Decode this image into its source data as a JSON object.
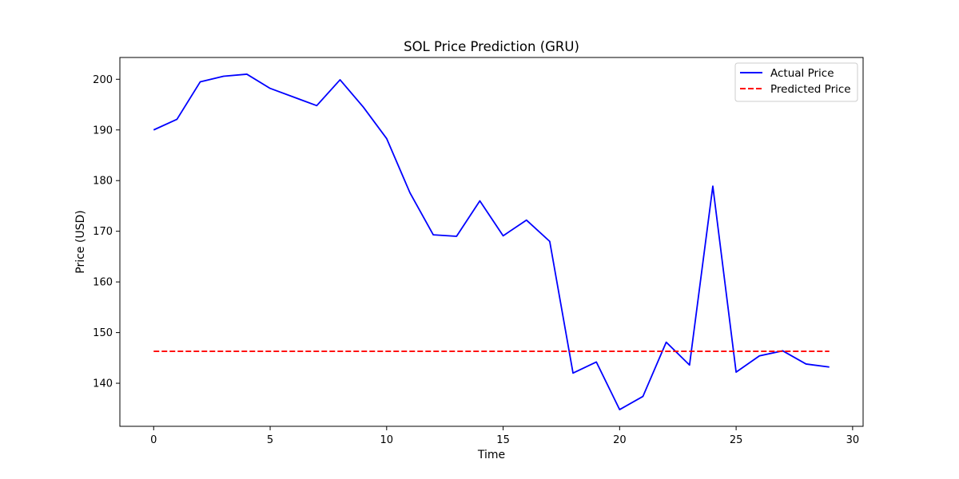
{
  "chart_data": {
    "type": "line",
    "title": "SOL Price Prediction (GRU)",
    "xlabel": "Time",
    "ylabel": "Price (USD)",
    "xlim": [
      -1.45,
      30.45
    ],
    "ylim": [
      131.5,
      204.3
    ],
    "xticks": [
      0,
      5,
      10,
      15,
      20,
      25,
      30
    ],
    "yticks": [
      140,
      150,
      160,
      170,
      180,
      190,
      200
    ],
    "grid": false,
    "legend_position": "top-right",
    "series": [
      {
        "name": "Actual Price",
        "color": "#0000ff",
        "style": "solid",
        "x": [
          0,
          1,
          2,
          3,
          4,
          5,
          6,
          7,
          8,
          9,
          10,
          11,
          12,
          13,
          14,
          15,
          16,
          17,
          18,
          19,
          20,
          21,
          22,
          23,
          24,
          25,
          26,
          27,
          28,
          29
        ],
        "values": [
          190.0,
          192.1,
          199.5,
          200.6,
          201.0,
          198.2,
          196.5,
          194.8,
          199.9,
          194.5,
          188.3,
          177.6,
          169.3,
          169.0,
          176.0,
          169.1,
          172.2,
          168.0,
          142.0,
          144.2,
          134.8,
          137.4,
          148.1,
          143.6,
          178.9,
          142.2,
          145.4,
          146.4,
          143.8,
          143.2
        ]
      },
      {
        "name": "Predicted Price",
        "color": "#ff0000",
        "style": "dashed",
        "x": [
          0,
          1,
          2,
          3,
          4,
          5,
          6,
          7,
          8,
          9,
          10,
          11,
          12,
          13,
          14,
          15,
          16,
          17,
          18,
          19,
          20,
          21,
          22,
          23,
          24,
          25,
          26,
          27,
          28,
          29
        ],
        "values": [
          146.3,
          146.3,
          146.3,
          146.3,
          146.3,
          146.3,
          146.3,
          146.3,
          146.3,
          146.3,
          146.3,
          146.3,
          146.3,
          146.3,
          146.3,
          146.3,
          146.3,
          146.3,
          146.3,
          146.3,
          146.3,
          146.3,
          146.3,
          146.3,
          146.3,
          146.3,
          146.3,
          146.3,
          146.3,
          146.3
        ]
      }
    ]
  }
}
